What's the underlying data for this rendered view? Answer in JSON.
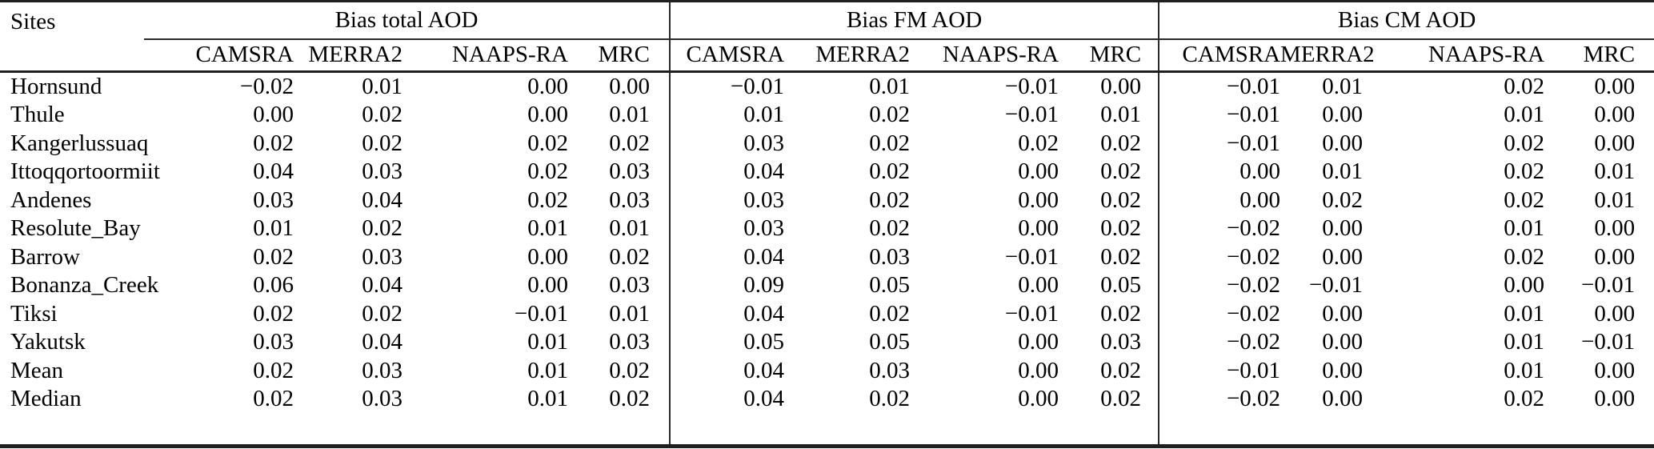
{
  "table": {
    "sites_header": "Sites",
    "groups": [
      {
        "label": "Bias total AOD",
        "models": [
          "CAMSRA",
          "MERRA2",
          "NAAPS-RA",
          "MRC"
        ]
      },
      {
        "label": "Bias FM AOD",
        "models": [
          "CAMSRA",
          "MERRA2",
          "NAAPS-RA",
          "MRC"
        ]
      },
      {
        "label": "Bias CM AOD",
        "models": [
          "CAMSRA",
          "MERRA2",
          "NAAPS-RA",
          "MRC"
        ]
      }
    ],
    "rows": [
      {
        "site": "Hornsund",
        "total": [
          "−0.02",
          "0.01",
          "0.00",
          "0.00"
        ],
        "fm": [
          "−0.01",
          "0.01",
          "−0.01",
          "0.00"
        ],
        "cm": [
          "−0.01",
          "0.01",
          "0.02",
          "0.00"
        ]
      },
      {
        "site": "Thule",
        "total": [
          "0.00",
          "0.02",
          "0.00",
          "0.01"
        ],
        "fm": [
          "0.01",
          "0.02",
          "−0.01",
          "0.01"
        ],
        "cm": [
          "−0.01",
          "0.00",
          "0.01",
          "0.00"
        ]
      },
      {
        "site": "Kangerlussuaq",
        "total": [
          "0.02",
          "0.02",
          "0.02",
          "0.02"
        ],
        "fm": [
          "0.03",
          "0.02",
          "0.02",
          "0.02"
        ],
        "cm": [
          "−0.01",
          "0.00",
          "0.02",
          "0.00"
        ]
      },
      {
        "site": "Ittoqqortoormiit",
        "total": [
          "0.04",
          "0.03",
          "0.02",
          "0.03"
        ],
        "fm": [
          "0.04",
          "0.02",
          "0.00",
          "0.02"
        ],
        "cm": [
          "0.00",
          "0.01",
          "0.02",
          "0.01"
        ]
      },
      {
        "site": "Andenes",
        "total": [
          "0.03",
          "0.04",
          "0.02",
          "0.03"
        ],
        "fm": [
          "0.03",
          "0.02",
          "0.00",
          "0.02"
        ],
        "cm": [
          "0.00",
          "0.02",
          "0.02",
          "0.01"
        ]
      },
      {
        "site": "Resolute_Bay",
        "total": [
          "0.01",
          "0.02",
          "0.01",
          "0.01"
        ],
        "fm": [
          "0.03",
          "0.02",
          "0.00",
          "0.02"
        ],
        "cm": [
          "−0.02",
          "0.00",
          "0.01",
          "0.00"
        ]
      },
      {
        "site": "Barrow",
        "total": [
          "0.02",
          "0.03",
          "0.00",
          "0.02"
        ],
        "fm": [
          "0.04",
          "0.03",
          "−0.01",
          "0.02"
        ],
        "cm": [
          "−0.02",
          "0.00",
          "0.02",
          "0.00"
        ]
      },
      {
        "site": "Bonanza_Creek",
        "total": [
          "0.06",
          "0.04",
          "0.00",
          "0.03"
        ],
        "fm": [
          "0.09",
          "0.05",
          "0.00",
          "0.05"
        ],
        "cm": [
          "−0.02",
          "−0.01",
          "0.00",
          "−0.01"
        ]
      },
      {
        "site": "Tiksi",
        "total": [
          "0.02",
          "0.02",
          "−0.01",
          "0.01"
        ],
        "fm": [
          "0.04",
          "0.02",
          "−0.01",
          "0.02"
        ],
        "cm": [
          "−0.02",
          "0.00",
          "0.01",
          "0.00"
        ]
      },
      {
        "site": "Yakutsk",
        "total": [
          "0.03",
          "0.04",
          "0.01",
          "0.03"
        ],
        "fm": [
          "0.05",
          "0.05",
          "0.00",
          "0.03"
        ],
        "cm": [
          "−0.02",
          "0.00",
          "0.01",
          "−0.01"
        ]
      },
      {
        "site": "Mean",
        "total": [
          "0.02",
          "0.03",
          "0.01",
          "0.02"
        ],
        "fm": [
          "0.04",
          "0.03",
          "0.00",
          "0.02"
        ],
        "cm": [
          "−0.01",
          "0.00",
          "0.01",
          "0.00"
        ]
      },
      {
        "site": "Median",
        "total": [
          "0.02",
          "0.03",
          "0.01",
          "0.02"
        ],
        "fm": [
          "0.04",
          "0.02",
          "0.00",
          "0.02"
        ],
        "cm": [
          "−0.02",
          "0.00",
          "0.02",
          "0.00"
        ]
      }
    ]
  }
}
